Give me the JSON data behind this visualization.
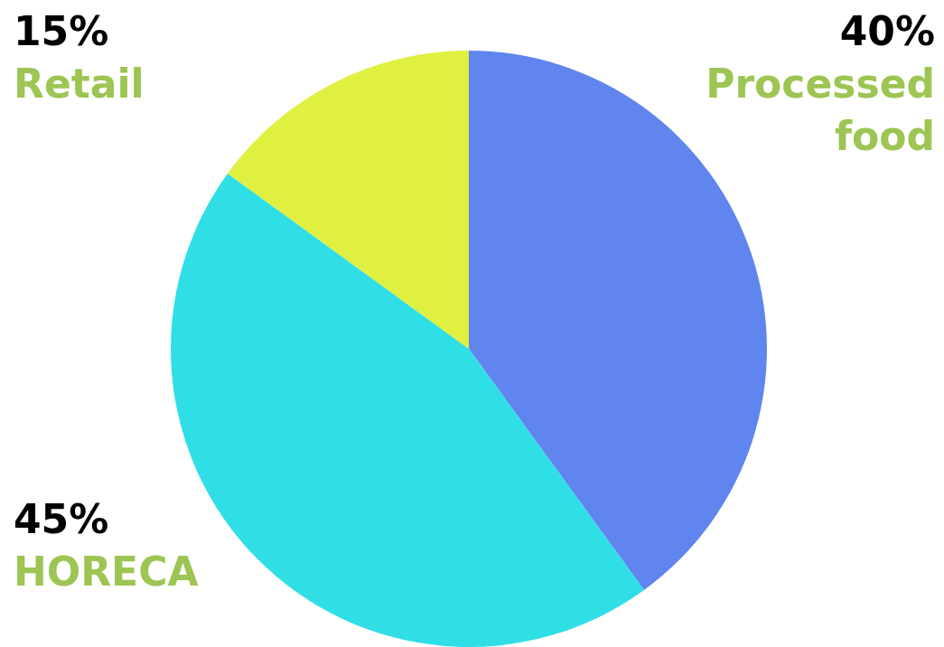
{
  "chart_data": {
    "type": "pie",
    "categories": [
      "Processed\nfood",
      "HORECA",
      "Retail"
    ],
    "values": [
      40,
      45,
      15
    ],
    "colors": [
      "#6085ee",
      "#30dee6",
      "#dff040"
    ],
    "value_labels": [
      "40%",
      "45%",
      "15%"
    ],
    "legend": false
  }
}
